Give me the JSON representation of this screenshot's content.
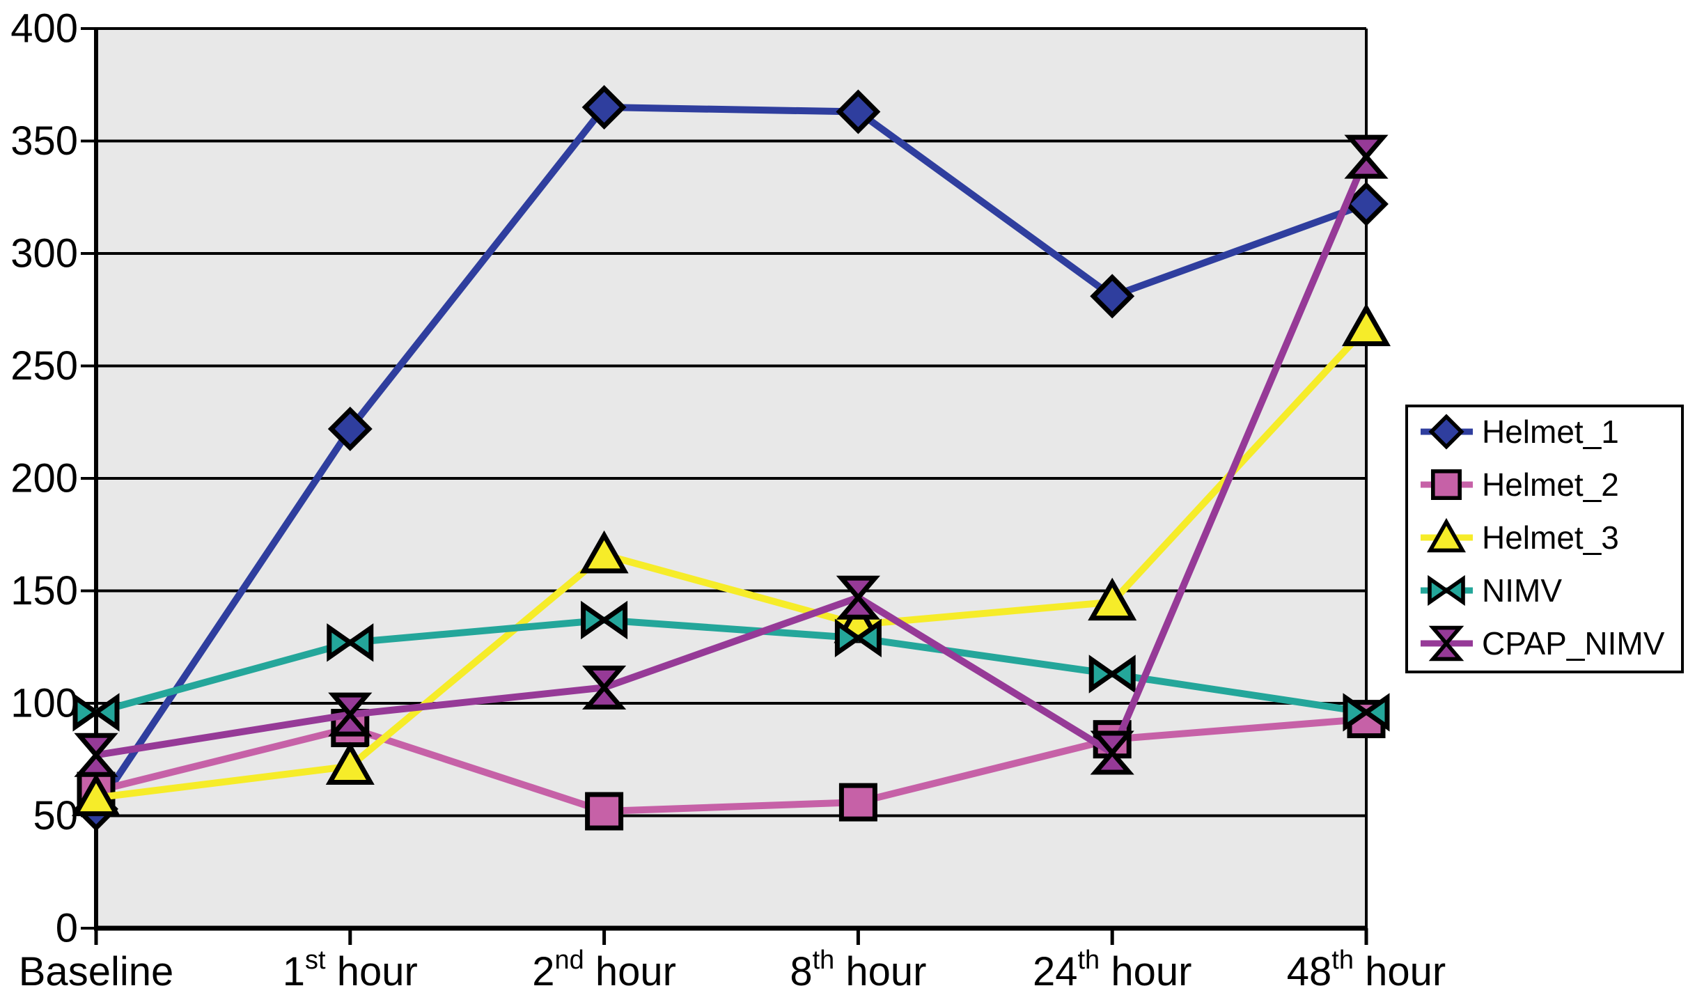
{
  "chart_data": {
    "type": "line",
    "categories": [
      "Baseline",
      "1st hour",
      "2nd hour",
      "8th hour",
      "24th hour",
      "48th hour"
    ],
    "series": [
      {
        "name": "Helmet_1",
        "marker": "diamond",
        "color": "#2F3E9E",
        "values": [
          53,
          222,
          365,
          363,
          281,
          322
        ]
      },
      {
        "name": "Helmet_2",
        "marker": "square",
        "color": "#C661A7",
        "values": [
          61,
          89,
          52,
          56,
          84,
          93
        ]
      },
      {
        "name": "Helmet_3",
        "marker": "triangle-up",
        "color": "#F6EC29",
        "values": [
          58,
          72,
          166,
          135,
          145,
          267
        ]
      },
      {
        "name": "NIMV",
        "marker": "bowtie-horizontal",
        "color": "#24A69A",
        "values": [
          96,
          127,
          137,
          129,
          113,
          96
        ]
      },
      {
        "name": "CPAP_NIMV",
        "marker": "hourglass",
        "color": "#963A97",
        "values": [
          77,
          95,
          107,
          147,
          78,
          343
        ]
      }
    ],
    "yticks": [
      0,
      50,
      100,
      150,
      200,
      250,
      300,
      350,
      400
    ],
    "ylim": [
      0,
      400
    ],
    "grid": "horizontal",
    "legend_position": "right",
    "colors": {
      "plot_background": "#E8E8E8",
      "page_background": "#FFFFFF",
      "grid_line": "#000000",
      "axis_line": "#000000",
      "text": "#000000",
      "legend_background": "#FFFFFF",
      "legend_border": "#000000",
      "marker_outline": "#000000"
    }
  }
}
